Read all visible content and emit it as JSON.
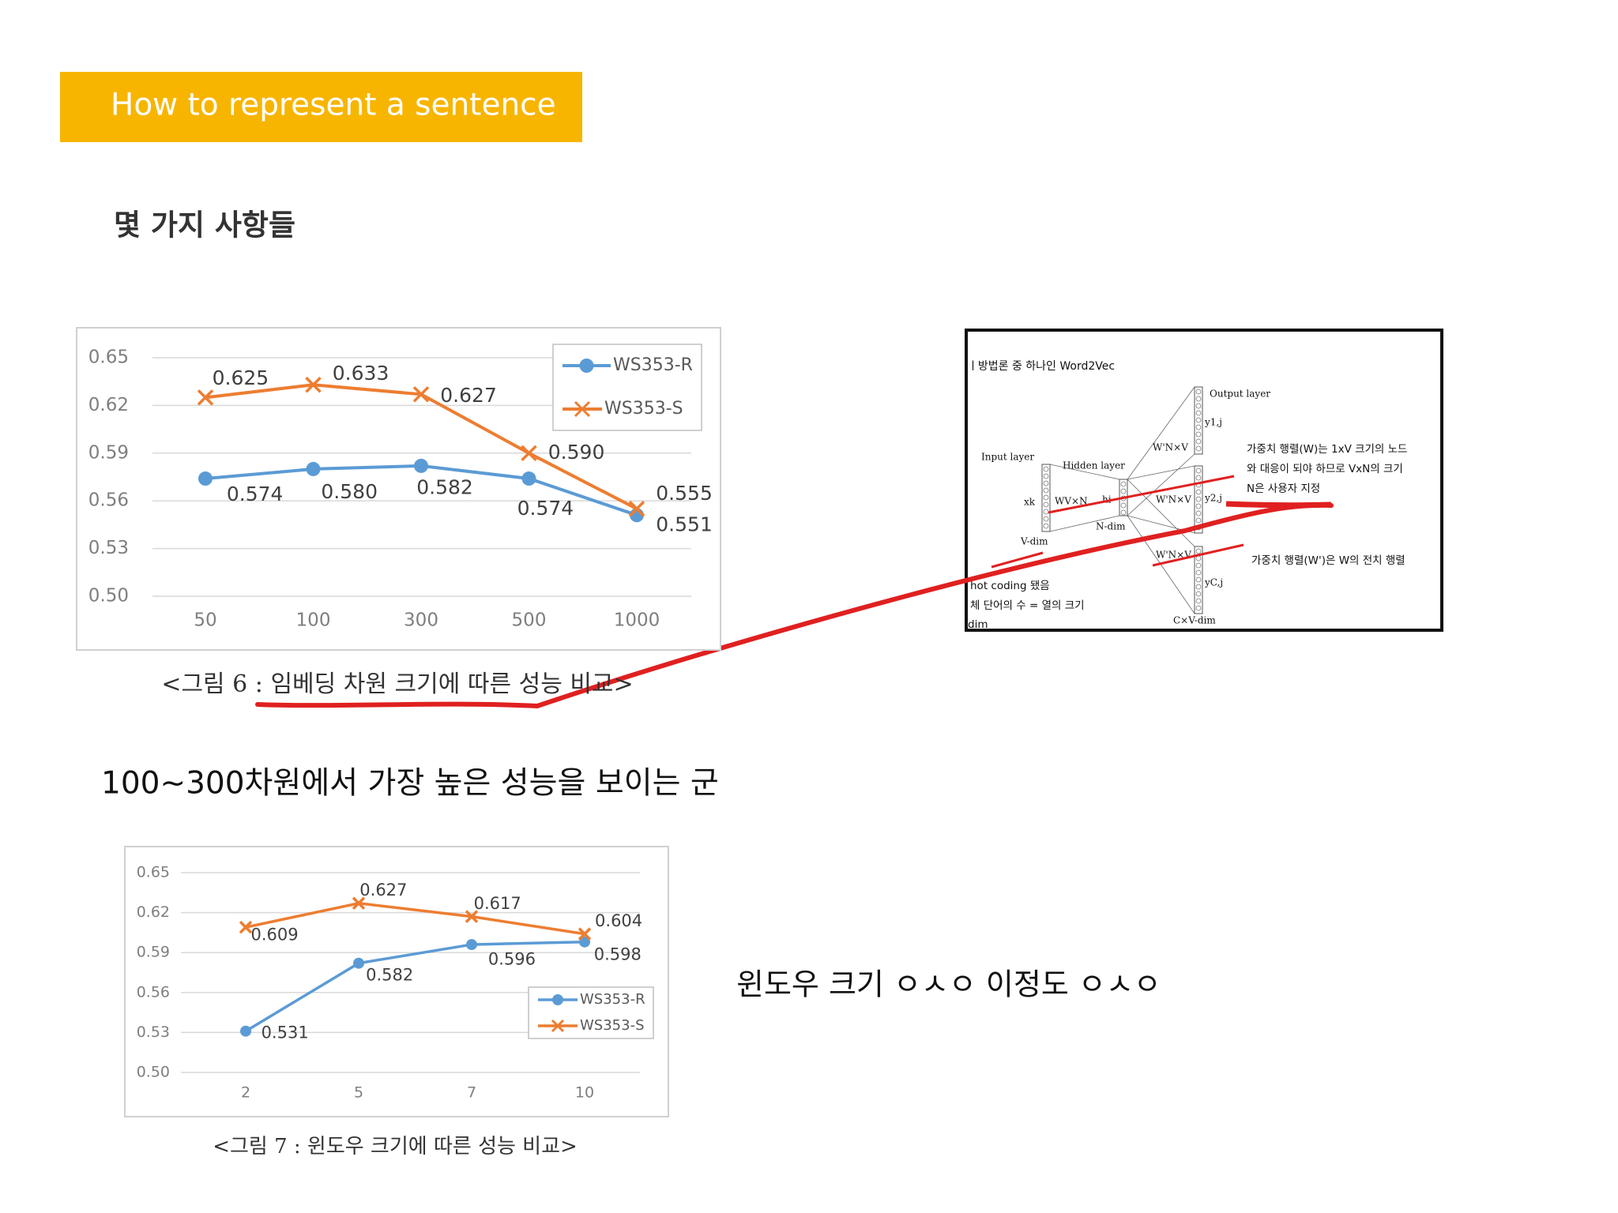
{
  "header": {
    "title": "How to represent a sentence"
  },
  "heading": "몇 가지 사항들",
  "notes": [
    "100~300차원에서 가장 높은 성능을 보이는 군",
    "윈도우 크기 ㅇㅅㅇ 이정도 ㅇㅅㅇ"
  ],
  "chart_data": [
    {
      "type": "line",
      "caption": "<그림 6 : 임베딩 차원 크기에 따른 성능 비교>",
      "categories": [
        "50",
        "100",
        "300",
        "500",
        "1000"
      ],
      "series": [
        {
          "name": "WS353-R",
          "color": "#5b9bd5",
          "values": [
            0.574,
            0.58,
            0.582,
            0.574,
            0.551
          ],
          "value_labels": [
            "0.574",
            "0.580",
            "0.582",
            "0.574",
            "0.551"
          ]
        },
        {
          "name": "WS353-S",
          "color": "#ed7d31",
          "values": [
            0.625,
            0.633,
            0.627,
            0.59,
            0.555
          ],
          "value_labels": [
            "0.625",
            "0.633",
            "0.627",
            "0.590",
            "0.555"
          ]
        }
      ],
      "ylim": [
        0.5,
        0.65
      ],
      "yticks": [
        {
          "value": 0.5,
          "label": "0.50"
        },
        0.53,
        0.56,
        0.59,
        0.62,
        0.65
      ],
      "grid": true,
      "legend": "upper right"
    },
    {
      "type": "line",
      "caption": "<그림 7 : 윈도우 크기에 따른 성능 비교>",
      "categories": [
        "2",
        "5",
        "7",
        "10"
      ],
      "series": [
        {
          "name": "WS353-R",
          "color": "#5b9bd5",
          "values": [
            0.531,
            0.582,
            0.596,
            0.598
          ]
        },
        {
          "name": "WS353-S",
          "color": "#ed7d31",
          "values": [
            0.609,
            0.627,
            0.617,
            0.604
          ]
        }
      ],
      "ylim": [
        0.5,
        0.65
      ],
      "yticks": [
        {
          "value": 0.5,
          "label": "0.50"
        },
        0.53,
        0.56,
        0.59,
        0.62,
        0.65
      ],
      "grid": true,
      "legend": "lower right"
    }
  ],
  "diagram": {
    "title": "ㅣ방법론 중 하나인 Word2Vec",
    "labels": [
      "Output layer",
      "Input layer",
      "Hidden layer",
      "V-dim",
      "N-dim",
      "C×V-dim",
      "xk",
      "hi",
      "WV×N",
      "W'N×V",
      "W'N×V",
      "W'N×V",
      "y1,j",
      "y2,j",
      "yC,j"
    ],
    "notes": [
      "가중치 행렬(W)는 1xV 크기의 노드",
      "와 대응이 되야 하므로 VxN의 크기",
      "N은 사용자 지정",
      "가중치 행렬(W')은 W의 전치 행렬",
      "hot coding 됐음",
      "체 단어의 수 = 열의 크기",
      "dim"
    ]
  }
}
